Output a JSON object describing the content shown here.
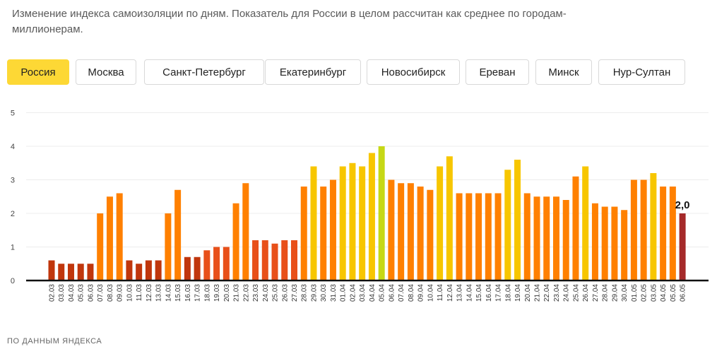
{
  "subtitle": "Изменение индекса самоизоляции по дням. Показатель для России в целом рассчитан как среднее по городам-миллионерам.",
  "tabs": [
    {
      "label": "Россия",
      "active": true
    },
    {
      "label": "Москва",
      "active": false
    },
    {
      "label": "Санкт-Петербург",
      "active": false
    },
    {
      "label": "Екатеринбург",
      "active": false
    },
    {
      "label": "Новосибирск",
      "active": false
    },
    {
      "label": "Ереван",
      "active": false
    },
    {
      "label": "Минск",
      "active": false
    },
    {
      "label": "Нур-Султан",
      "active": false
    }
  ],
  "source_label": "ПО ДАННЫМ ЯНДЕКСА",
  "colors": {
    "active_tab": "#fdd835",
    "dark_red": "#c0360c",
    "orange_red": "#e8501a",
    "orange": "#ff8000",
    "yellow": "#f7c600",
    "lime": "#c6d816",
    "last_bar": "#a52a2a"
  },
  "chart_data": {
    "type": "bar",
    "ylim": [
      0,
      5
    ],
    "yticks": [
      0,
      1,
      2,
      3,
      4,
      5
    ],
    "categories": [
      "02.03",
      "03.03",
      "04.03",
      "05.03",
      "06.03",
      "07.03",
      "08.03",
      "09.03",
      "10.03",
      "11.03",
      "12.03",
      "13.03",
      "14.03",
      "15.03",
      "16.03",
      "17.03",
      "18.03",
      "19.03",
      "20.03",
      "21.03",
      "22.03",
      "23.03",
      "24.03",
      "25.03",
      "26.03",
      "27.03",
      "28.03",
      "29.03",
      "30.03",
      "31.03",
      "01.04",
      "02.04",
      "03.04",
      "04.04",
      "05.04",
      "06.04",
      "07.04",
      "08.04",
      "09.04",
      "10.04",
      "11.04",
      "12.04",
      "13.04",
      "14.04",
      "15.04",
      "16.04",
      "17.04",
      "18.04",
      "19.04",
      "20.04",
      "21.04",
      "22.04",
      "23.04",
      "24.04",
      "25.04",
      "26.04",
      "27.04",
      "28.04",
      "29.04",
      "30.04",
      "01.05",
      "02.05",
      "03.05",
      "04.05",
      "05.05",
      "06.05"
    ],
    "values": [
      0.6,
      0.5,
      0.5,
      0.5,
      0.5,
      2.0,
      2.5,
      2.6,
      0.6,
      0.5,
      0.6,
      0.6,
      2.0,
      2.7,
      0.7,
      0.7,
      0.9,
      1.0,
      1.0,
      2.3,
      2.9,
      1.2,
      1.2,
      1.1,
      1.2,
      1.2,
      2.8,
      3.4,
      2.8,
      3.0,
      3.4,
      3.5,
      3.4,
      3.8,
      4.0,
      3.0,
      2.9,
      2.9,
      2.8,
      2.7,
      3.4,
      3.7,
      2.6,
      2.6,
      2.6,
      2.6,
      2.6,
      3.3,
      3.6,
      2.6,
      2.5,
      2.5,
      2.5,
      2.4,
      3.1,
      3.4,
      2.3,
      2.2,
      2.2,
      2.1,
      3.0,
      3.0,
      3.2,
      2.8,
      2.8,
      2.0
    ],
    "last_value_label": "2,0"
  }
}
